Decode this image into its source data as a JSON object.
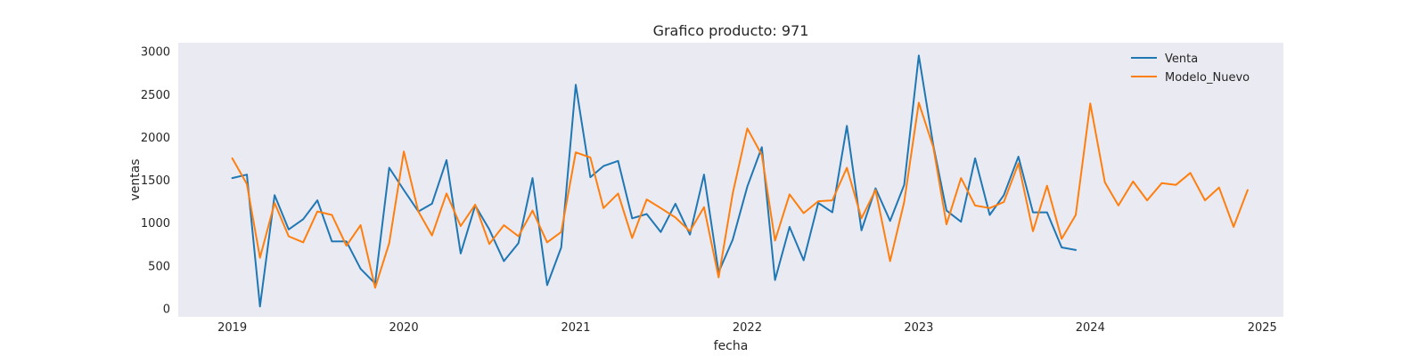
{
  "chart_data": {
    "type": "line",
    "title": "Grafico producto: 971",
    "xlabel": "fecha",
    "ylabel": "ventas",
    "xlim": [
      "2018-09-08",
      "2025-02-15"
    ],
    "ylim": [
      -100,
      3100
    ],
    "x_ticks": [
      "2019",
      "2020",
      "2021",
      "2022",
      "2023",
      "2024",
      "2025"
    ],
    "y_ticks": [
      0,
      500,
      1000,
      1500,
      2000,
      2500,
      3000
    ],
    "grid": false,
    "legend": "top-right",
    "background": "#eaeaf2",
    "series": [
      {
        "name": "Venta",
        "color": "#1f77b4",
        "start": "2019-01",
        "values": [
          1520,
          1560,
          20,
          1320,
          920,
          1040,
          1260,
          780,
          780,
          460,
          290,
          1640,
          1380,
          1130,
          1220,
          1730,
          640,
          1200,
          920,
          550,
          760,
          1520,
          270,
          710,
          2610,
          1530,
          1660,
          1720,
          1050,
          1100,
          890,
          1220,
          860,
          1560,
          420,
          800,
          1420,
          1880,
          330,
          950,
          560,
          1230,
          1120,
          2130,
          910,
          1400,
          1020,
          1440,
          2950,
          1900,
          1140,
          1010,
          1750,
          1090,
          1320,
          1770,
          1120,
          1120,
          710,
          680
        ]
      },
      {
        "name": "Modelo_Nuevo",
        "color": "#ff7f0e",
        "start": "2019-01",
        "values": [
          1750,
          1450,
          590,
          1230,
          840,
          770,
          1130,
          1090,
          730,
          970,
          240,
          760,
          1830,
          1130,
          850,
          1340,
          960,
          1210,
          750,
          970,
          840,
          1140,
          770,
          890,
          1820,
          1760,
          1170,
          1340,
          820,
          1270,
          1170,
          1060,
          900,
          1180,
          360,
          1340,
          2100,
          1790,
          790,
          1330,
          1110,
          1250,
          1260,
          1640,
          1050,
          1380,
          550,
          1240,
          2400,
          1880,
          980,
          1520,
          1200,
          1170,
          1240,
          1690,
          900,
          1430,
          810,
          1090,
          2390,
          1470,
          1200,
          1480,
          1260,
          1460,
          1440,
          1580,
          1260,
          1410,
          950,
          1380
        ]
      }
    ]
  }
}
